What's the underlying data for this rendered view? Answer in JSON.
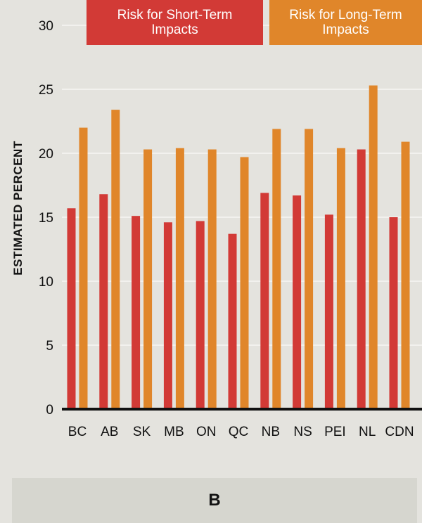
{
  "colors": {
    "background": "#e4e3de",
    "short_term": "#d23a36",
    "long_term": "#e0862a",
    "grid": "#ffffff",
    "axis": "#111111"
  },
  "panel_label": "B",
  "chart_data": {
    "type": "bar",
    "ylabel": "ESTIMATED PERCENT",
    "xlabel": "",
    "ylim": [
      0,
      30
    ],
    "yticks": [
      0,
      5,
      10,
      15,
      20,
      25,
      30
    ],
    "grid": true,
    "legend_position": "top",
    "categories": [
      "BC",
      "AB",
      "SK",
      "MB",
      "ON",
      "QC",
      "NB",
      "NS",
      "PEI",
      "NL",
      "CDN"
    ],
    "series": [
      {
        "name": "Risk for Short-Term Impacts",
        "color": "#d23a36",
        "values": [
          15.7,
          16.8,
          15.1,
          14.6,
          14.7,
          13.7,
          16.9,
          16.7,
          15.2,
          20.3,
          15.0
        ]
      },
      {
        "name": "Risk for Long-Term Impacts",
        "color": "#e0862a",
        "values": [
          22.0,
          23.4,
          20.3,
          20.4,
          20.3,
          19.7,
          21.9,
          21.9,
          20.4,
          25.3,
          20.9
        ]
      }
    ]
  }
}
